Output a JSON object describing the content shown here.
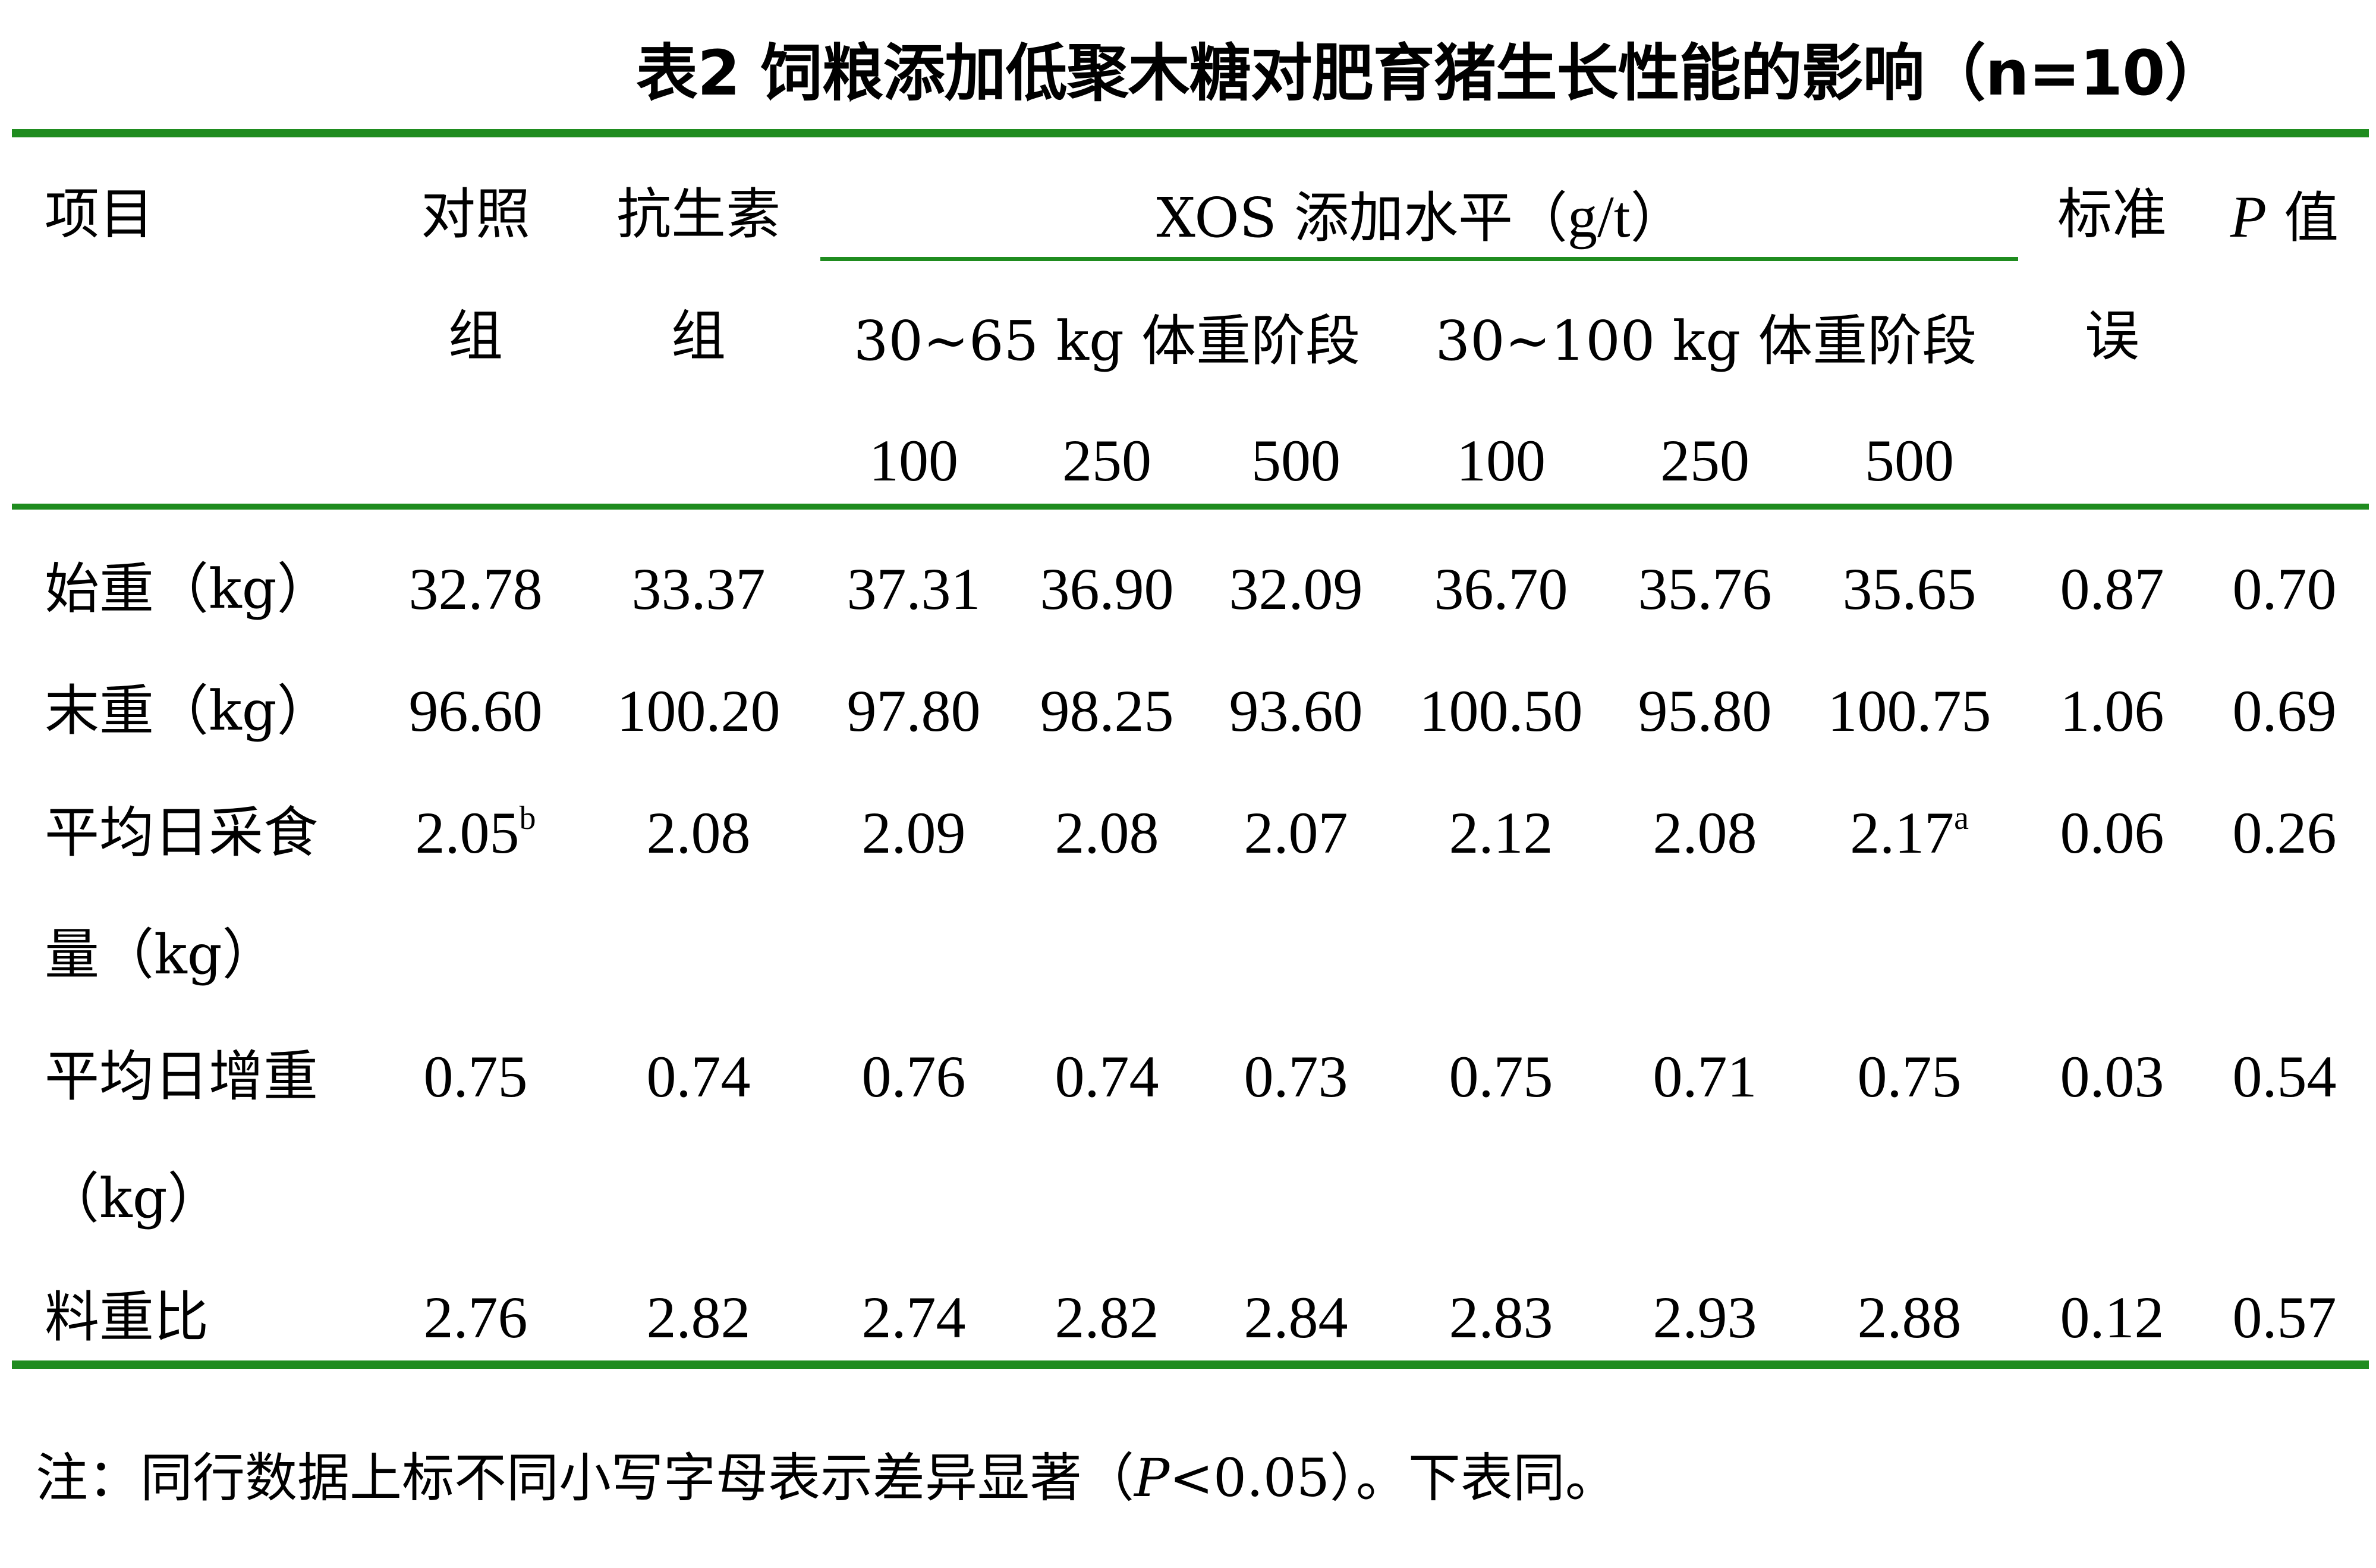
{
  "title": "表2 饲粮添加低聚木糖对肥育猪生长性能的影响（n=10）",
  "colors": {
    "rule": "#1f8c1f"
  },
  "header": {
    "item": "项目",
    "control_line1": "对照",
    "control_line2": "组",
    "antibiotic_line1": "抗生素",
    "antibiotic_line2": "组",
    "xos_prefix": "XOS 添加水平（",
    "xos_unit": "g/t",
    "xos_suffix": "）",
    "sem_line1": "标准",
    "sem_line2": "误",
    "p_italic": "P",
    "p_rest": " 值",
    "stage1": "30~65 kg 体重阶段",
    "stage2": "30~100 kg 体重阶段",
    "levels": [
      "100",
      "250",
      "500",
      "100",
      "250",
      "500"
    ]
  },
  "rows": [
    {
      "label_line1": "始重（kg）",
      "label_line2": "",
      "values": [
        "32.78",
        "33.37",
        "37.31",
        "36.90",
        "32.09",
        "36.70",
        "35.76",
        "35.65",
        "0.87",
        "0.70"
      ],
      "sups": [
        "",
        "",
        "",
        "",
        "",
        "",
        "",
        "",
        "",
        ""
      ]
    },
    {
      "label_line1": "末重（kg）",
      "label_line2": "",
      "values": [
        "96.60",
        "100.20",
        "97.80",
        "98.25",
        "93.60",
        "100.50",
        "95.80",
        "100.75",
        "1.06",
        "0.69"
      ],
      "sups": [
        "",
        "",
        "",
        "",
        "",
        "",
        "",
        "",
        "",
        ""
      ]
    },
    {
      "label_line1": "平均日采食",
      "label_line2": "量（kg）",
      "values": [
        "2.05",
        "2.08",
        "2.09",
        "2.08",
        "2.07",
        "2.12",
        "2.08",
        "2.17",
        "0.06",
        "0.26"
      ],
      "sups": [
        "b",
        "",
        "",
        "",
        "",
        "",
        "",
        "a",
        "",
        ""
      ]
    },
    {
      "label_line1": "平均日增重",
      "label_line2": "（kg）",
      "values": [
        "0.75",
        "0.74",
        "0.76",
        "0.74",
        "0.73",
        "0.75",
        "0.71",
        "0.75",
        "0.03",
        "0.54"
      ],
      "sups": [
        "",
        "",
        "",
        "",
        "",
        "",
        "",
        "",
        "",
        ""
      ]
    },
    {
      "label_line1": "料重比",
      "label_line2": "",
      "values": [
        "2.76",
        "2.82",
        "2.74",
        "2.82",
        "2.84",
        "2.83",
        "2.93",
        "2.88",
        "0.12",
        "0.57"
      ],
      "sups": [
        "",
        "",
        "",
        "",
        "",
        "",
        "",
        "",
        "",
        ""
      ]
    }
  ],
  "note": {
    "prefix": "注：同行数据上标不同小写字母表示差异显著（",
    "p_italic": "P",
    "rest": "<0.05）。下表同。"
  }
}
